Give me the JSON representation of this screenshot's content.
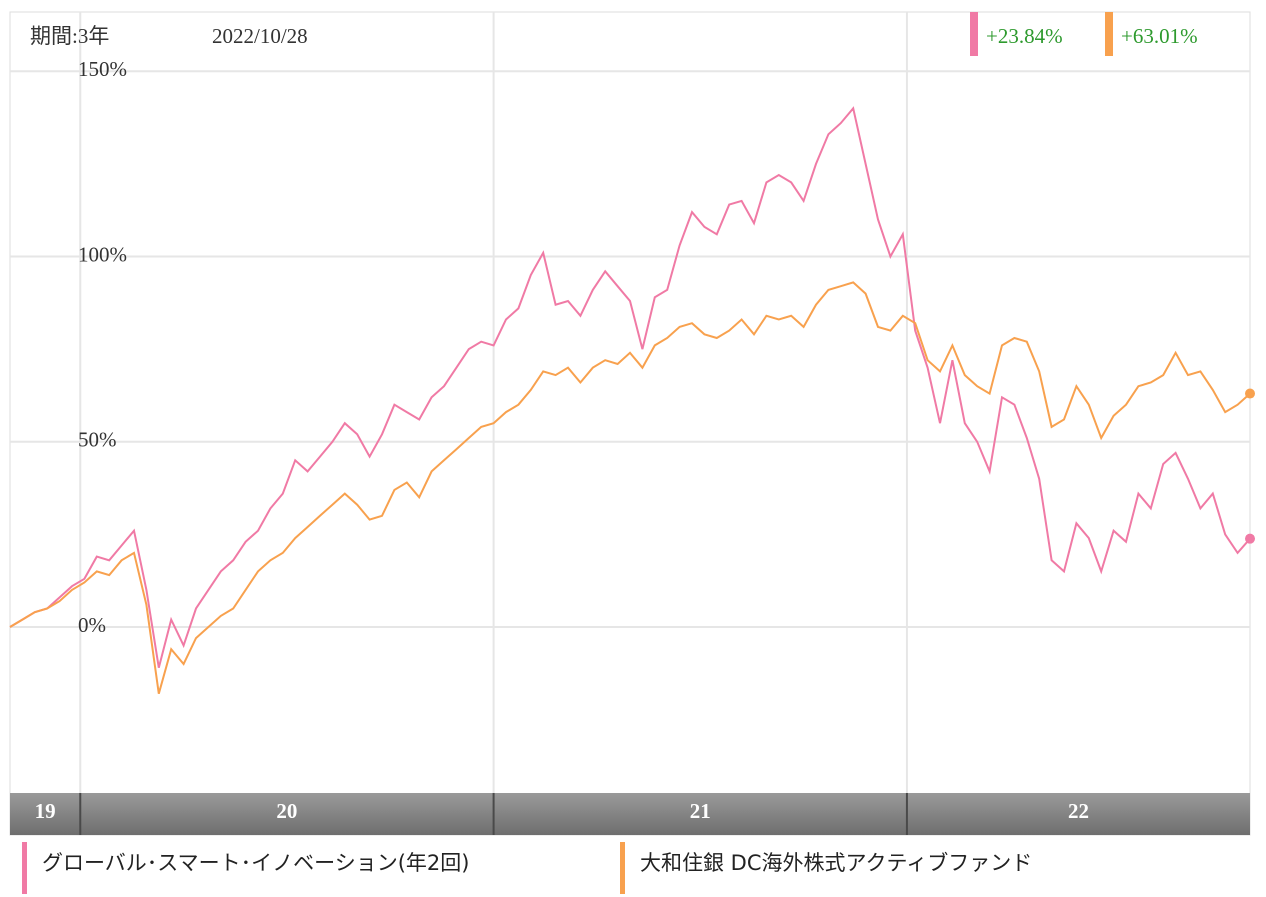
{
  "chart_data": {
    "type": "line",
    "period": "期間:3年",
    "date": "2022/10/28",
    "x": [
      2019.83,
      2019.86,
      2019.89,
      2019.92,
      2019.95,
      2019.98,
      2020.01,
      2020.04,
      2020.07,
      2020.1,
      2020.13,
      2020.16,
      2020.19,
      2020.22,
      2020.25,
      2020.28,
      2020.31,
      2020.34,
      2020.37,
      2020.4,
      2020.43,
      2020.46,
      2020.49,
      2020.52,
      2020.55,
      2020.58,
      2020.61,
      2020.64,
      2020.67,
      2020.7,
      2020.73,
      2020.76,
      2020.79,
      2020.82,
      2020.85,
      2020.88,
      2020.91,
      2020.94,
      2020.97,
      2021.0,
      2021.03,
      2021.06,
      2021.09,
      2021.12,
      2021.15,
      2021.18,
      2021.21,
      2021.24,
      2021.27,
      2021.3,
      2021.33,
      2021.36,
      2021.39,
      2021.42,
      2021.45,
      2021.48,
      2021.51,
      2021.54,
      2021.57,
      2021.6,
      2021.63,
      2021.66,
      2021.69,
      2021.72,
      2021.75,
      2021.78,
      2021.81,
      2021.84,
      2021.87,
      2021.9,
      2021.93,
      2021.96,
      2021.99,
      2022.02,
      2022.05,
      2022.08,
      2022.11,
      2022.14,
      2022.17,
      2022.2,
      2022.23,
      2022.26,
      2022.29,
      2022.32,
      2022.35,
      2022.38,
      2022.41,
      2022.44,
      2022.47,
      2022.5,
      2022.53,
      2022.56,
      2022.59,
      2022.62,
      2022.65,
      2022.68,
      2022.71,
      2022.74,
      2022.77,
      2022.8,
      2022.83
    ],
    "xlim": [
      2019.83,
      2022.83
    ],
    "xticks": [
      {
        "value": 2019,
        "label": "19"
      },
      {
        "value": 2020,
        "label": "20"
      },
      {
        "value": 2021,
        "label": "21"
      },
      {
        "value": 2022,
        "label": "22"
      }
    ],
    "ylim": [
      -44,
      166
    ],
    "yticks": [
      {
        "value": 0,
        "label": "0%"
      },
      {
        "value": 50,
        "label": "50%"
      },
      {
        "value": 100,
        "label": "100%"
      },
      {
        "value": 150,
        "label": "150%"
      }
    ],
    "grid": true,
    "series": [
      {
        "name": "グローバル･スマート･イノベーション(年2回)",
        "color": "#f07aa5",
        "return": 23.84,
        "return_label": "+23.84%",
        "values": [
          0,
          2,
          4,
          5,
          8,
          11,
          13,
          19,
          18,
          22,
          26,
          10,
          -11,
          2,
          -5,
          5,
          10,
          15,
          18,
          23,
          26,
          32,
          36,
          45,
          42,
          46,
          50,
          55,
          52,
          46,
          52,
          60,
          58,
          56,
          62,
          65,
          70,
          75,
          77,
          76,
          83,
          86,
          95,
          101,
          87,
          88,
          84,
          91,
          96,
          92,
          88,
          75,
          89,
          91,
          103,
          112,
          108,
          106,
          114,
          115,
          109,
          120,
          122,
          120,
          115,
          125,
          133,
          136,
          140,
          125,
          110,
          100,
          106,
          80,
          70,
          55,
          72,
          55,
          50,
          42,
          62,
          60,
          51,
          40,
          18,
          15,
          28,
          24,
          15,
          26,
          23,
          36,
          32,
          44,
          47,
          40,
          32,
          36,
          25,
          20,
          23.84
        ]
      },
      {
        "name": "大和住銀 DC海外株式アクティブファンド",
        "color": "#f8a14e",
        "return": 63.01,
        "return_label": "+63.01%",
        "values": [
          0,
          2,
          4,
          5,
          7,
          10,
          12,
          15,
          14,
          18,
          20,
          6,
          -18,
          -6,
          -10,
          -3,
          0,
          3,
          5,
          10,
          15,
          18,
          20,
          24,
          27,
          30,
          33,
          36,
          33,
          29,
          30,
          37,
          39,
          35,
          42,
          45,
          48,
          51,
          54,
          55,
          58,
          60,
          64,
          69,
          68,
          70,
          66,
          70,
          72,
          71,
          74,
          70,
          76,
          78,
          81,
          82,
          79,
          78,
          80,
          83,
          79,
          84,
          83,
          84,
          81,
          87,
          91,
          92,
          93,
          90,
          81,
          80,
          84,
          82,
          72,
          69,
          76,
          68,
          65,
          63,
          76,
          78,
          77,
          69,
          54,
          56,
          65,
          60,
          51,
          57,
          60,
          65,
          66,
          68,
          74,
          68,
          69,
          64,
          58,
          60,
          63.01
        ]
      }
    ]
  }
}
